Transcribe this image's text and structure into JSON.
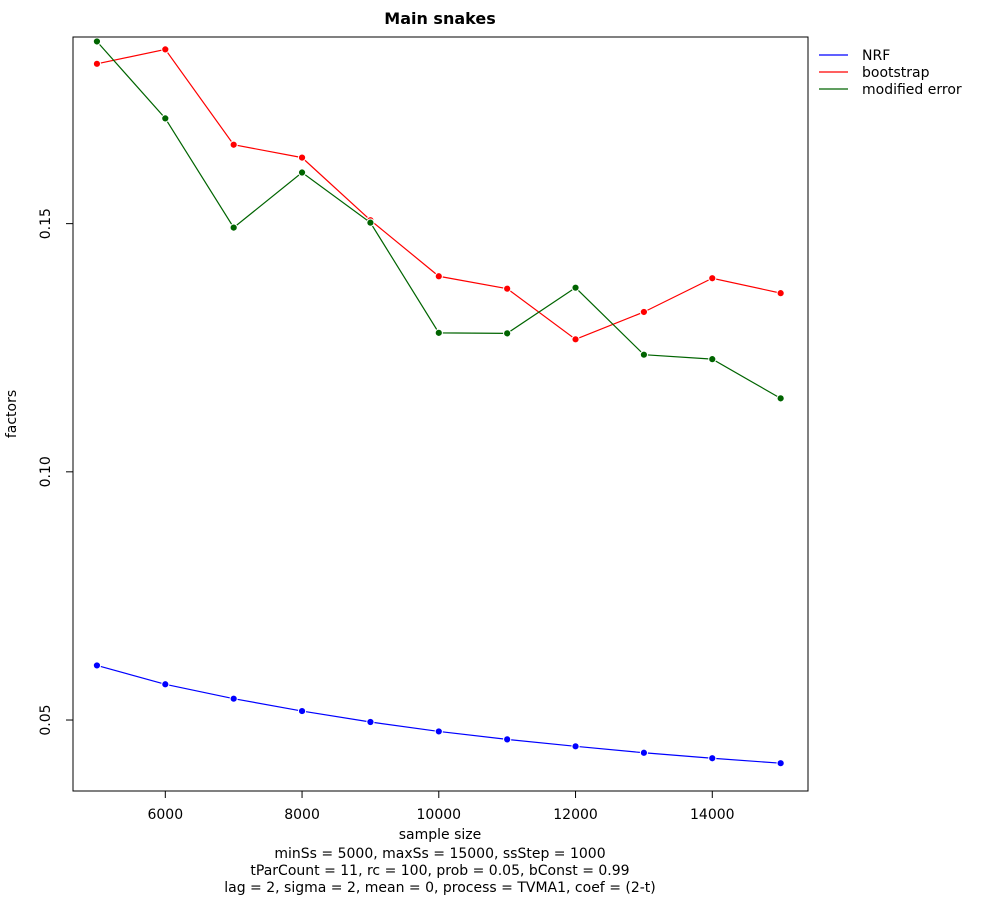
{
  "chart_data": {
    "type": "line",
    "title": "Main snakes",
    "xlabel": "sample size",
    "ylabel": "factors",
    "caption": [
      "minSs = 5000, maxSs = 15000, ssStep = 1000",
      "tParCount = 11, rc = 100, prob = 0.05, bConst = 0.99",
      "lag = 2, sigma = 2, mean = 0, process = TVMA1, coef = (2-t)"
    ],
    "xlim": [
      4650,
      15400
    ],
    "ylim": [
      0.0357,
      0.1876
    ],
    "x_ticks": [
      6000,
      8000,
      10000,
      12000,
      14000
    ],
    "y_ticks": [
      0.05,
      0.1,
      0.15
    ],
    "y_tick_labels": [
      "0.05",
      "0.10",
      "0.15"
    ],
    "x": [
      5000,
      6000,
      7000,
      8000,
      9000,
      10000,
      11000,
      12000,
      13000,
      14000,
      15000
    ],
    "series": [
      {
        "name": "NRF",
        "color": "#0000ff",
        "values": [
          0.061,
          0.0572,
          0.0543,
          0.0518,
          0.0496,
          0.0477,
          0.0461,
          0.0447,
          0.0434,
          0.0423,
          0.0413
        ]
      },
      {
        "name": "bootstrap",
        "color": "#ff0000",
        "values": [
          0.1822,
          0.1851,
          0.1659,
          0.1633,
          0.1507,
          0.1394,
          0.1369,
          0.1267,
          0.1322,
          0.139,
          0.136
        ]
      },
      {
        "name": "modified error",
        "color": "#006400",
        "values": [
          0.1867,
          0.1712,
          0.1492,
          0.1603,
          0.1502,
          0.128,
          0.1279,
          0.1371,
          0.1236,
          0.1227,
          0.1148
        ]
      }
    ],
    "legend_position": "top-right",
    "grid": false
  }
}
